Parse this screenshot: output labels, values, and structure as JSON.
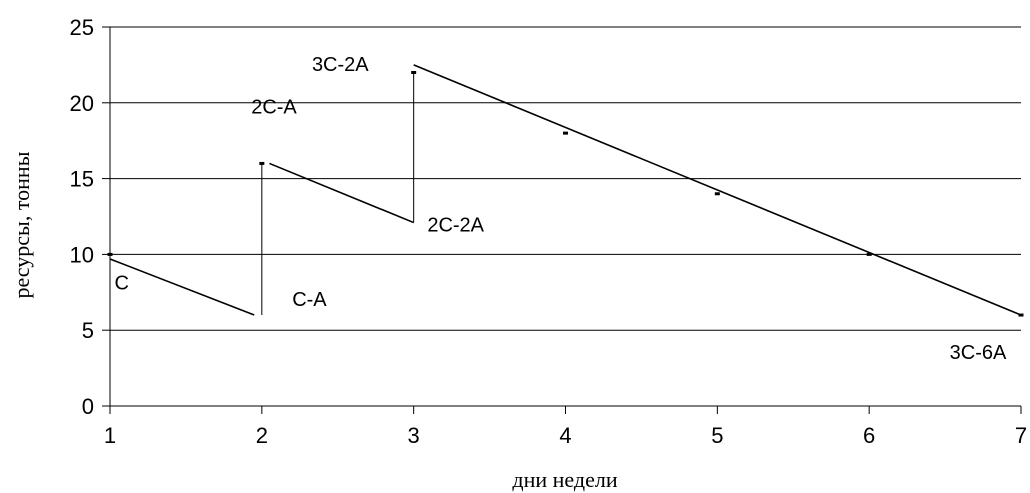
{
  "chart_data": {
    "type": "line",
    "xlabel": "дни недели",
    "ylabel": "ресурсы, тонны",
    "xlim": [
      1,
      7
    ],
    "ylim": [
      0,
      25
    ],
    "xticks": [
      1,
      2,
      3,
      4,
      5,
      6,
      7
    ],
    "yticks": [
      0,
      5,
      10,
      15,
      20,
      25
    ],
    "grid": "horizontal",
    "segments": [
      {
        "x": [
          1,
          1.95
        ],
        "y": [
          9.7,
          6
        ]
      },
      {
        "x": [
          2.05,
          3
        ],
        "y": [
          16,
          12.1
        ]
      },
      {
        "x": [
          3,
          7
        ],
        "y": [
          22.5,
          6
        ]
      }
    ],
    "vertical_lines": [
      {
        "x": 2,
        "y": [
          6,
          16
        ]
      },
      {
        "x": 3,
        "y": [
          12.1,
          22
        ]
      }
    ],
    "points": [
      {
        "x": 1,
        "y": 10
      },
      {
        "x": 2,
        "y": 16
      },
      {
        "x": 3,
        "y": 22
      },
      {
        "x": 4,
        "y": 18
      },
      {
        "x": 5,
        "y": 14
      },
      {
        "x": 6,
        "y": 10
      },
      {
        "x": 7,
        "y": 6
      }
    ],
    "annotations": [
      {
        "text": "C",
        "x": 1.03,
        "y": 7.7
      },
      {
        "text": "C-A",
        "x": 2.2,
        "y": 6.6
      },
      {
        "text": "2C-A",
        "x": 1.93,
        "y": 19.3
      },
      {
        "text": "2C-2A",
        "x": 3.09,
        "y": 11.5
      },
      {
        "text": "3C-2A",
        "x": 2.33,
        "y": 22.1
      },
      {
        "text": "3C-6A",
        "x": 6.53,
        "y": 3.1
      }
    ]
  }
}
